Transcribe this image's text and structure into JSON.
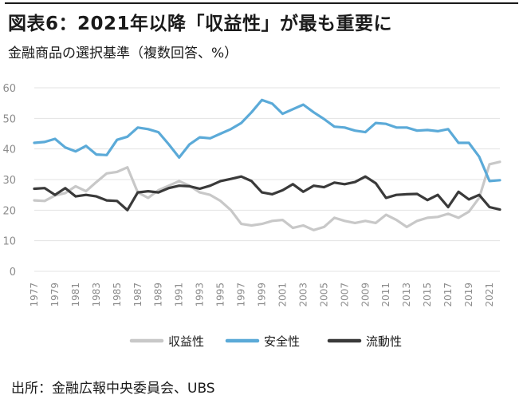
{
  "header": {
    "title": "図表6：2021年以降「収益性」が最も重要に",
    "subtitle": "金融商品の選択基準（複数回答、%）"
  },
  "footer": {
    "source": "出所：金融広報中央委員会、UBS"
  },
  "chart_data": {
    "type": "line",
    "title": "",
    "xlabel": "",
    "ylabel": "",
    "ylim": [
      0,
      60
    ],
    "yticks": [
      0,
      10,
      20,
      30,
      40,
      50,
      60
    ],
    "xlim": [
      1977,
      2022
    ],
    "xticks": [
      1977,
      1979,
      1981,
      1983,
      1985,
      1987,
      1989,
      1991,
      1993,
      1995,
      1997,
      1999,
      2001,
      2003,
      2005,
      2007,
      2009,
      2011,
      2013,
      2015,
      2017,
      2019,
      2021
    ],
    "grid": "horizontal",
    "legend": "bottom",
    "x": [
      1977,
      1978,
      1979,
      1980,
      1981,
      1982,
      1983,
      1984,
      1985,
      1986,
      1987,
      1988,
      1989,
      1990,
      1991,
      1992,
      1993,
      1994,
      1995,
      1996,
      1997,
      1998,
      1999,
      2000,
      2001,
      2002,
      2003,
      2004,
      2005,
      2006,
      2007,
      2008,
      2009,
      2010,
      2011,
      2012,
      2013,
      2014,
      2015,
      2016,
      2017,
      2018,
      2019,
      2020,
      2021,
      2022
    ],
    "series": [
      {
        "name": "収益性",
        "color": "#c8c8c8",
        "values": [
          23.2,
          23.0,
          24.8,
          25.6,
          27.8,
          26.2,
          29.2,
          32.0,
          32.5,
          34.0,
          25.8,
          24.0,
          26.5,
          28.0,
          29.5,
          28.0,
          25.8,
          25.0,
          23.0,
          20.0,
          15.5,
          15.0,
          15.5,
          16.5,
          16.8,
          14.2,
          15.0,
          13.5,
          14.5,
          17.5,
          16.5,
          15.8,
          16.5,
          15.8,
          18.5,
          16.8,
          14.5,
          16.5,
          17.5,
          17.8,
          18.8,
          17.5,
          19.5,
          24.0,
          35.0,
          35.8
        ]
      },
      {
        "name": "安全性",
        "color": "#5baad8",
        "values": [
          42.0,
          42.3,
          43.3,
          40.5,
          39.2,
          41.0,
          38.2,
          38.0,
          43.0,
          44.0,
          47.0,
          46.5,
          45.5,
          41.5,
          37.2,
          41.5,
          43.8,
          43.5,
          45.0,
          46.5,
          48.5,
          52.0,
          56.0,
          54.8,
          51.5,
          53.0,
          54.5,
          52.0,
          49.8,
          47.3,
          47.0,
          46.0,
          45.5,
          48.5,
          48.2,
          47.0,
          47.0,
          46.0,
          46.2,
          45.8,
          46.5,
          42.0,
          42.0,
          37.5,
          29.5,
          29.8
        ]
      },
      {
        "name": "流動性",
        "color": "#3a3a3a",
        "values": [
          27.0,
          27.2,
          25.0,
          27.2,
          24.5,
          25.0,
          24.5,
          23.2,
          23.0,
          20.0,
          25.8,
          26.2,
          25.8,
          27.2,
          28.0,
          27.8,
          27.0,
          28.0,
          29.5,
          30.2,
          31.0,
          29.5,
          25.8,
          25.2,
          26.5,
          28.5,
          26.0,
          28.0,
          27.5,
          29.0,
          28.5,
          29.2,
          31.0,
          28.8,
          24.0,
          25.0,
          25.2,
          25.3,
          23.3,
          25.0,
          21.0,
          26.0,
          23.5,
          25.0,
          21.0,
          20.2
        ]
      }
    ]
  }
}
